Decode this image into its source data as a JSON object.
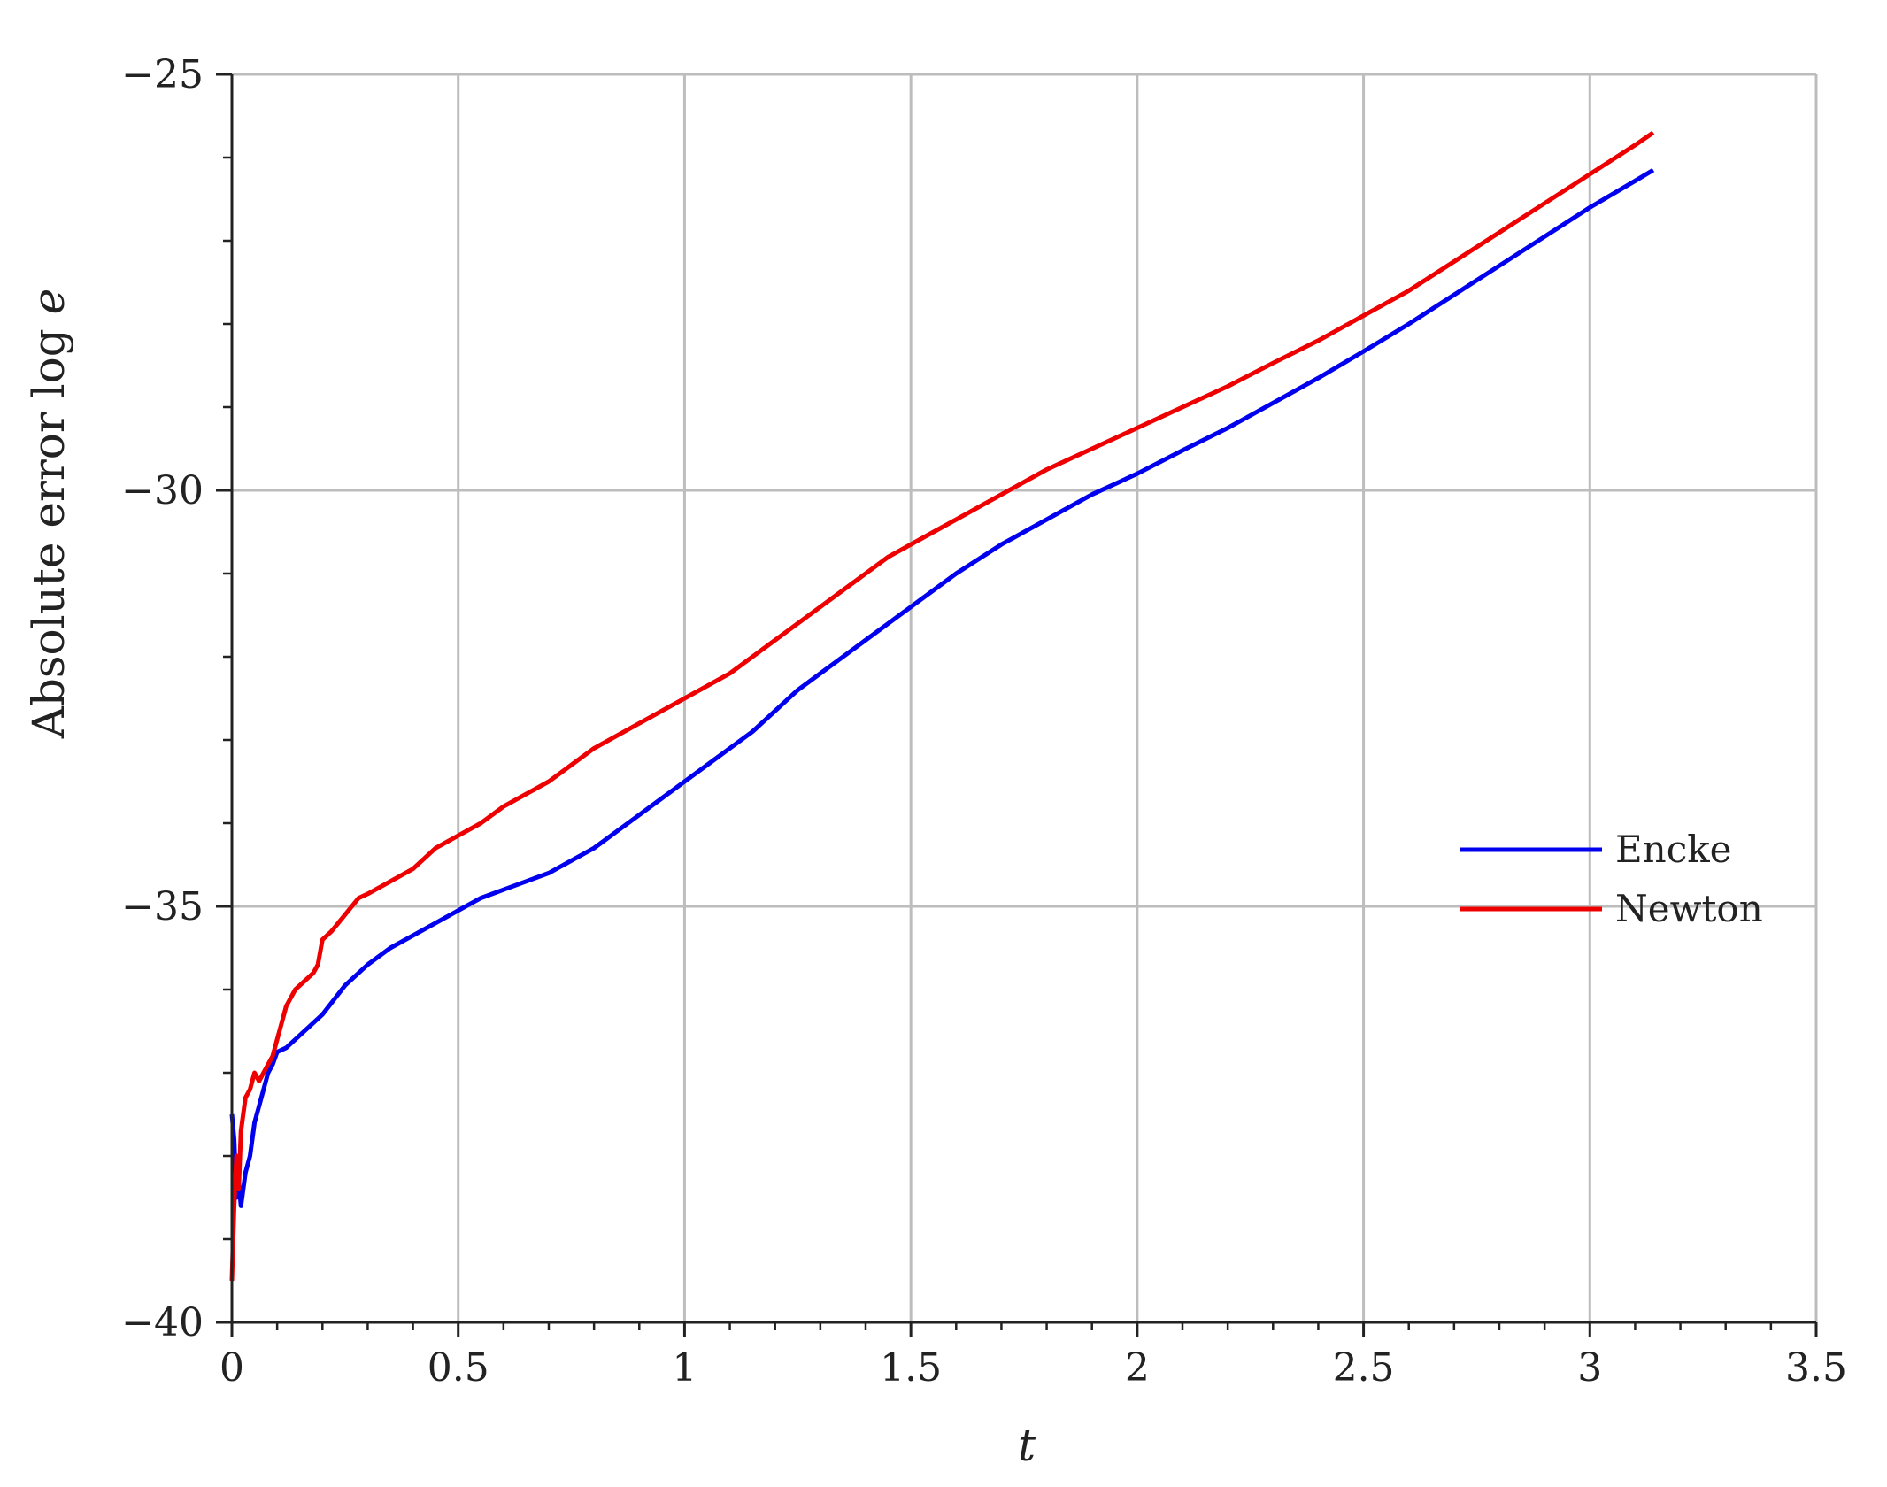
{
  "chart_data": {
    "type": "line",
    "title": "",
    "xlabel": "t",
    "ylabel_text": "Absolute error log ",
    "ylabel_var": "e",
    "xlim": [
      0,
      3.5
    ],
    "ylim": [
      -40,
      -25
    ],
    "xticks": [
      0,
      0.5,
      1,
      1.5,
      2,
      2.5,
      3,
      3.5
    ],
    "xtick_labels": [
      "0",
      "0.5",
      "1",
      "1.5",
      "2",
      "2.5",
      "3",
      "3.5"
    ],
    "yticks": [
      -40,
      -35,
      -30,
      -25
    ],
    "ytick_labels": [
      "−40",
      "−35",
      "−30",
      "−25"
    ],
    "grid": true,
    "legend_position": "right",
    "series": [
      {
        "name": "Encke",
        "color": "#0000ee",
        "x": [
          0,
          0.005,
          0.01,
          0.015,
          0.02,
          0.03,
          0.04,
          0.05,
          0.06,
          0.07,
          0.08,
          0.09,
          0.1,
          0.12,
          0.15,
          0.2,
          0.25,
          0.3,
          0.35,
          0.4,
          0.45,
          0.5,
          0.55,
          0.6,
          0.65,
          0.7,
          0.75,
          0.8,
          0.85,
          0.9,
          0.95,
          1.0,
          1.05,
          1.1,
          1.15,
          1.2,
          1.25,
          1.3,
          1.35,
          1.4,
          1.45,
          1.5,
          1.55,
          1.6,
          1.7,
          1.8,
          1.9,
          2.0,
          2.1,
          2.2,
          2.3,
          2.4,
          2.5,
          2.6,
          2.7,
          2.8,
          2.9,
          3.0,
          3.1,
          3.14
        ],
        "values": [
          -37.5,
          -37.8,
          -38.5,
          -38.3,
          -38.6,
          -38.2,
          -38.0,
          -37.6,
          -37.4,
          -37.2,
          -37.0,
          -36.9,
          -36.75,
          -36.7,
          -36.55,
          -36.3,
          -35.95,
          -35.7,
          -35.5,
          -35.35,
          -35.2,
          -35.05,
          -34.9,
          -34.8,
          -34.7,
          -34.6,
          -34.45,
          -34.3,
          -34.1,
          -33.9,
          -33.7,
          -33.5,
          -33.3,
          -33.1,
          -32.9,
          -32.65,
          -32.4,
          -32.2,
          -32.0,
          -31.8,
          -31.6,
          -31.4,
          -31.2,
          -31.0,
          -30.65,
          -30.35,
          -30.05,
          -29.8,
          -29.52,
          -29.25,
          -28.95,
          -28.65,
          -28.33,
          -28.0,
          -27.65,
          -27.3,
          -26.95,
          -26.6,
          -26.28,
          -26.15
        ]
      },
      {
        "name": "Newton",
        "color": "#ee0000",
        "x": [
          0,
          0.005,
          0.01,
          0.015,
          0.02,
          0.03,
          0.04,
          0.05,
          0.06,
          0.07,
          0.08,
          0.09,
          0.1,
          0.11,
          0.12,
          0.14,
          0.16,
          0.18,
          0.19,
          0.2,
          0.22,
          0.25,
          0.28,
          0.3,
          0.35,
          0.4,
          0.45,
          0.5,
          0.55,
          0.6,
          0.65,
          0.7,
          0.75,
          0.8,
          0.85,
          0.9,
          0.95,
          1.0,
          1.05,
          1.1,
          1.15,
          1.2,
          1.25,
          1.3,
          1.35,
          1.4,
          1.45,
          1.5,
          1.55,
          1.6,
          1.7,
          1.8,
          1.9,
          2.0,
          2.1,
          2.2,
          2.3,
          2.4,
          2.5,
          2.6,
          2.7,
          2.8,
          2.9,
          3.0,
          3.1,
          3.14
        ],
        "values": [
          -39.5,
          -38.6,
          -38.0,
          -38.4,
          -37.7,
          -37.3,
          -37.2,
          -37.0,
          -37.1,
          -37.0,
          -36.9,
          -36.8,
          -36.6,
          -36.4,
          -36.2,
          -36.0,
          -35.9,
          -35.8,
          -35.7,
          -35.4,
          -35.3,
          -35.1,
          -34.9,
          -34.85,
          -34.7,
          -34.55,
          -34.3,
          -34.15,
          -34.0,
          -33.8,
          -33.65,
          -33.5,
          -33.3,
          -33.1,
          -32.95,
          -32.8,
          -32.65,
          -32.5,
          -32.35,
          -32.2,
          -32.0,
          -31.8,
          -31.6,
          -31.4,
          -31.2,
          -31.0,
          -30.8,
          -30.65,
          -30.5,
          -30.35,
          -30.05,
          -29.75,
          -29.5,
          -29.25,
          -29.0,
          -28.75,
          -28.47,
          -28.2,
          -27.9,
          -27.6,
          -27.25,
          -26.9,
          -26.55,
          -26.2,
          -25.85,
          -25.7
        ]
      }
    ]
  }
}
